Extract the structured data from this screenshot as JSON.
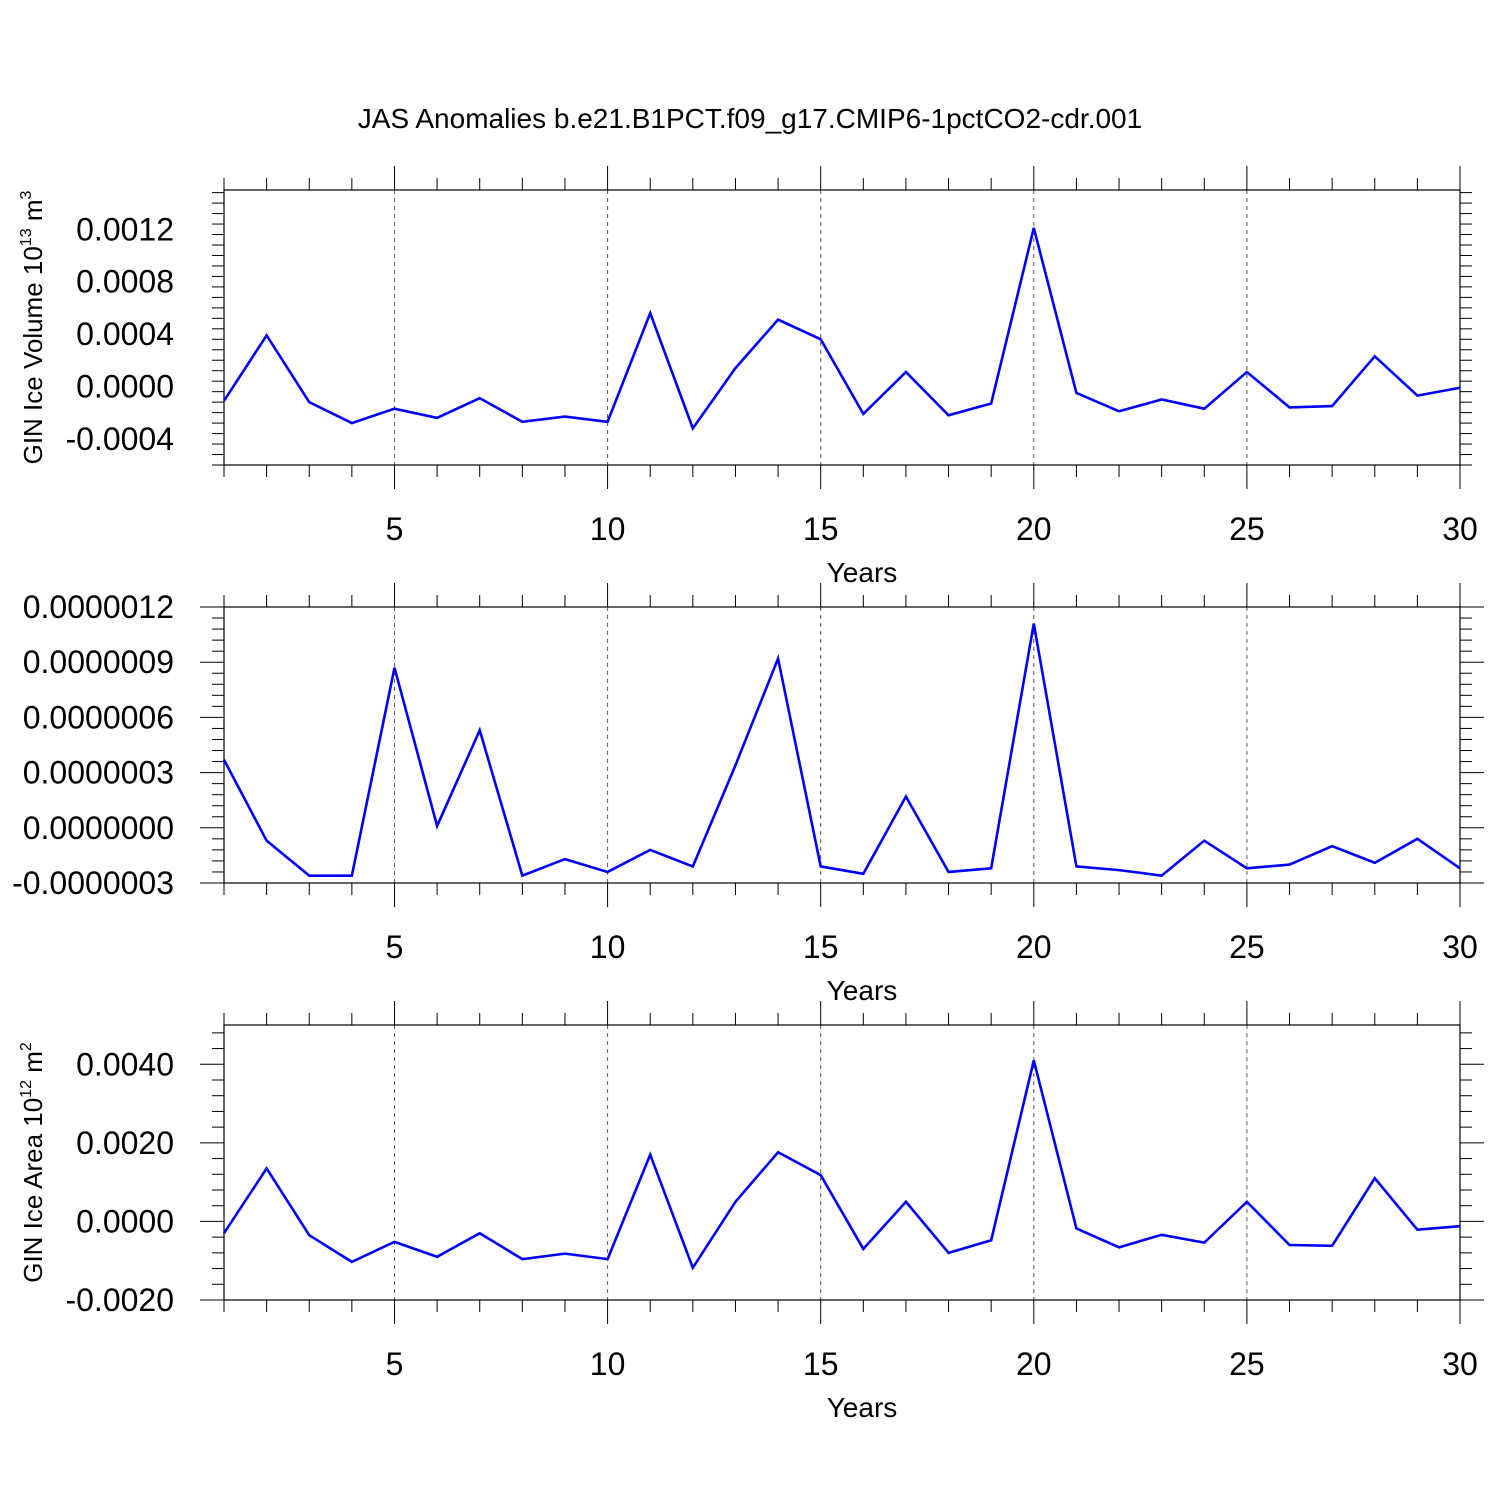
{
  "figure": {
    "title": "JAS Anomalies b.e21.B1PCT.f09_g17.CMIP6-1pctCO2-cdr.001"
  },
  "chart_data": [
    {
      "type": "line",
      "xlabel": "Years",
      "ylabel": "GIN Ice Volume 10",
      "ylabel_sup": "13",
      "ylabel_unit": "m",
      "ylabel_unit_sup": "3",
      "xlim": [
        1,
        30
      ],
      "ylim": [
        -0.0006,
        0.0015
      ],
      "xticks": [
        5,
        10,
        15,
        20,
        25,
        30
      ],
      "yticks": [
        -0.0004,
        0.0,
        0.0004,
        0.0008,
        0.0012
      ],
      "ytick_labels": [
        "-0.0004",
        "0.0000",
        "0.0004",
        "0.0008",
        "0.0012"
      ],
      "grid": "x-dashed",
      "line_color": "#0000ff",
      "x": [
        1,
        2,
        3,
        4,
        5,
        6,
        7,
        8,
        9,
        10,
        11,
        12,
        13,
        14,
        15,
        16,
        17,
        18,
        19,
        20,
        21,
        22,
        23,
        24,
        25,
        26,
        27,
        28,
        29,
        30
      ],
      "values": [
        -0.00011,
        0.00039,
        -0.00012,
        -0.00028,
        -0.00017,
        -0.00024,
        -9e-05,
        -0.00027,
        -0.00023,
        -0.00027,
        0.00056,
        -0.00032,
        0.00014,
        0.00051,
        0.00036,
        -0.00021,
        0.00011,
        -0.00022,
        -0.00013,
        0.00121,
        -5e-05,
        -0.00019,
        -0.0001,
        -0.00017,
        0.00011,
        -0.00016,
        -0.00015,
        0.00023,
        -7e-05,
        -1e-05
      ]
    },
    {
      "type": "line",
      "xlabel": "Years",
      "ylabel": "",
      "xlim": [
        1,
        30
      ],
      "ylim": [
        -3e-07,
        1.2e-06
      ],
      "xticks": [
        5,
        10,
        15,
        20,
        25,
        30
      ],
      "yticks": [
        -3e-07,
        0.0,
        3e-07,
        6e-07,
        9e-07,
        1.2e-06
      ],
      "ytick_labels": [
        "-0.0000003",
        "0.0000000",
        "0.0000003",
        "0.0000006",
        "0.0000009",
        "0.0000012"
      ],
      "grid": "x-dashed",
      "line_color": "#0000ff",
      "x": [
        1,
        2,
        3,
        4,
        5,
        6,
        7,
        8,
        9,
        10,
        11,
        12,
        13,
        14,
        15,
        16,
        17,
        18,
        19,
        20,
        21,
        22,
        23,
        24,
        25,
        26,
        27,
        28,
        29,
        30
      ],
      "values": [
        3.7e-07,
        -7e-08,
        -2.6e-07,
        -2.6e-07,
        8.7e-07,
        1e-08,
        5.3e-07,
        -2.6e-07,
        -1.7e-07,
        -2.4e-07,
        -1.2e-07,
        -2.1e-07,
        3.4e-07,
        9.2e-07,
        -2.1e-07,
        -2.5e-07,
        1.7e-07,
        -2.4e-07,
        -2.2e-07,
        1.11e-06,
        -2.1e-07,
        -2.3e-07,
        -2.6e-07,
        -7e-08,
        -2.2e-07,
        -2e-07,
        -1e-07,
        -1.9e-07,
        -6e-08,
        -2.2e-07
      ]
    },
    {
      "type": "line",
      "xlabel": "Years",
      "ylabel": "GIN Ice Area 10",
      "ylabel_sup": "12",
      "ylabel_unit": "m",
      "ylabel_unit_sup": "2",
      "xlim": [
        1,
        30
      ],
      "ylim": [
        -0.002,
        0.005
      ],
      "xticks": [
        5,
        10,
        15,
        20,
        25,
        30
      ],
      "yticks": [
        -0.002,
        0.0,
        0.002,
        0.004
      ],
      "ytick_labels": [
        "-0.0020",
        "0.0000",
        "0.0020",
        "0.0040"
      ],
      "grid": "x-dashed",
      "line_color": "#0000ff",
      "x": [
        1,
        2,
        3,
        4,
        5,
        6,
        7,
        8,
        9,
        10,
        11,
        12,
        13,
        14,
        15,
        16,
        17,
        18,
        19,
        20,
        21,
        22,
        23,
        24,
        25,
        26,
        27,
        28,
        29,
        30
      ],
      "values": [
        -0.0003,
        0.00135,
        -0.00035,
        -0.00103,
        -0.00052,
        -0.0009,
        -0.0003,
        -0.00096,
        -0.00082,
        -0.00096,
        0.0017,
        -0.00118,
        0.0005,
        0.00176,
        0.00118,
        -0.0007,
        0.0005,
        -0.0008,
        -0.00048,
        0.0041,
        -0.00018,
        -0.00066,
        -0.00034,
        -0.00054,
        0.0005,
        -0.0006,
        -0.00062,
        0.0011,
        -0.00021,
        -0.00012
      ]
    }
  ]
}
